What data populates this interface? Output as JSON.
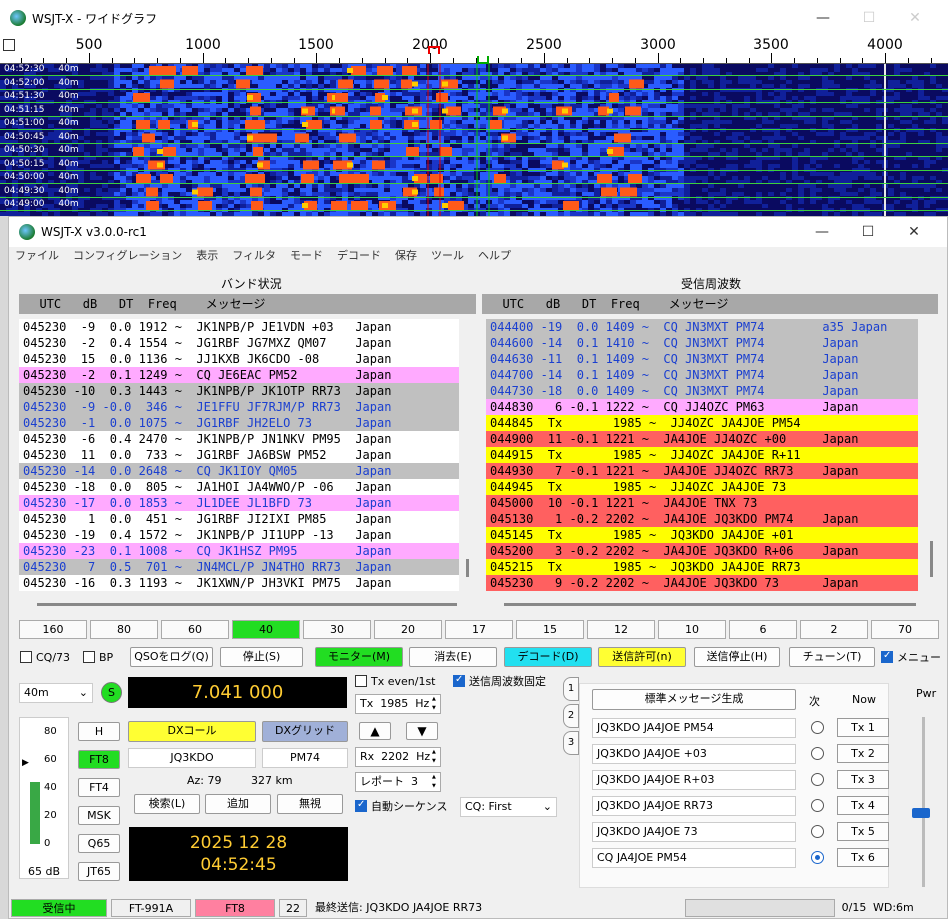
{
  "waterfall": {
    "title": "WSJT-X - ワイドグラフ",
    "ticks": [
      "500",
      "1000",
      "1500",
      "2000",
      "2500",
      "3000",
      "3500",
      "4000"
    ],
    "rows": [
      {
        "time": "04:52:30",
        "band": "40m"
      },
      {
        "time": "04:52:00",
        "band": "40m"
      },
      {
        "time": "04:51:30",
        "band": "40m"
      },
      {
        "time": "04:51:15",
        "band": "40m"
      },
      {
        "time": "04:51:00",
        "band": "40m"
      },
      {
        "time": "04:50:45",
        "band": "40m"
      },
      {
        "time": "04:50:30",
        "band": "40m"
      },
      {
        "time": "04:50:15",
        "band": "40m"
      },
      {
        "time": "04:50:00",
        "band": "40m"
      },
      {
        "time": "04:49:30",
        "band": "40m"
      },
      {
        "time": "04:49:00",
        "band": "40m"
      }
    ]
  },
  "main": {
    "title": "WSJT-X   v3.0.0-rc1",
    "menu": [
      "ファイル",
      "コンフィグレーション",
      "表示",
      "フィルタ",
      "モード",
      "デコード",
      "保存",
      "ツール",
      "ヘルプ"
    ],
    "band_activity_label": "バンド状況",
    "rx_freq_label": "受信周波数",
    "header": "  UTC   dB   DT  Freq    メッセージ",
    "band_activity": [
      {
        "text": "045230  -9  0.0 1912 ~  JK1NPB/P JE1VDN +03   Japan",
        "bg": "",
        "fg": ""
      },
      {
        "text": "045230  -2  0.4 1554 ~  JG1RBF JG7MXZ QM07    Japan",
        "bg": "",
        "fg": ""
      },
      {
        "text": "045230  15  0.0 1136 ~  JJ1KXB JK6CDO -08     Japan",
        "bg": "",
        "fg": ""
      },
      {
        "text": "045230  -2  0.1 1249 ~  CQ JE6EAC PM52        Japan",
        "bg": "c-pink",
        "fg": ""
      },
      {
        "text": "045230 -10  0.3 1443 ~  JK1NPB/P JK1OTP RR73  Japan",
        "bg": "c-gray",
        "fg": ""
      },
      {
        "text": "045230  -9 -0.0  346 ~  JE1FFU JF7RJM/P RR73  Japan",
        "bg": "c-gray",
        "fg": "t-blue"
      },
      {
        "text": "045230  -1  0.0 1075 ~  JG1RBF JH2ELO 73      Japan",
        "bg": "c-gray",
        "fg": "t-blue"
      },
      {
        "text": "045230  -6  0.4 2470 ~  JK1NPB/P JN1NKV PM95  Japan",
        "bg": "",
        "fg": ""
      },
      {
        "text": "045230  11  0.0  733 ~  JG1RBF JA6BSW PM52    Japan",
        "bg": "",
        "fg": ""
      },
      {
        "text": "045230 -14  0.0 2648 ~  CQ JK1IOY QM05        Japan",
        "bg": "c-gray",
        "fg": "t-blue"
      },
      {
        "text": "045230 -18  0.0  805 ~  JA1HOI JA4WWO/P -06   Japan",
        "bg": "",
        "fg": ""
      },
      {
        "text": "045230 -17  0.0 1853 ~  JL1DEE JL1BFD 73      Japan",
        "bg": "c-pink",
        "fg": "t-blue"
      },
      {
        "text": "045230   1  0.0  451 ~  JG1RBF JI2IXI PM85    Japan",
        "bg": "",
        "fg": ""
      },
      {
        "text": "045230 -19  0.4 1572 ~  JK1NPB/P JI1UPP -13   Japan",
        "bg": "",
        "fg": ""
      },
      {
        "text": "045230 -23  0.1 1008 ~  CQ JK1HSZ PM95        Japan",
        "bg": "c-pink",
        "fg": "t-blue"
      },
      {
        "text": "045230   7  0.5  701 ~  JN4MCL/P JN4THO RR73  Japan",
        "bg": "c-gray",
        "fg": "t-blue"
      },
      {
        "text": "045230 -16  0.3 1193 ~  JK1XWN/P JH3VKI PM75  Japan",
        "bg": "",
        "fg": ""
      }
    ],
    "rx_frequency": [
      {
        "text": "044400 -19  0.0 1409 ~  CQ JN3MXT PM74        a35 Japan",
        "bg": "c-gray",
        "fg": "t-blue"
      },
      {
        "text": "044600 -14  0.1 1410 ~  CQ JN3MXT PM74        Japan",
        "bg": "c-gray",
        "fg": "t-blue"
      },
      {
        "text": "044630 -11  0.1 1409 ~  CQ JN3MXT PM74        Japan",
        "bg": "c-gray",
        "fg": "t-blue"
      },
      {
        "text": "044700 -14  0.1 1409 ~  CQ JN3MXT PM74        Japan",
        "bg": "c-gray",
        "fg": "t-blue"
      },
      {
        "text": "044730 -18  0.0 1409 ~  CQ JN3MXT PM74        Japan",
        "bg": "c-gray",
        "fg": "t-blue"
      },
      {
        "text": "044830   6 -0.1 1222 ~  CQ JJ4OZC PM63        Japan",
        "bg": "c-pink",
        "fg": ""
      },
      {
        "text": "044845  Tx       1985 ~  JJ4OZC JA4JOE PM54",
        "bg": "c-yellow",
        "fg": ""
      },
      {
        "text": "044900  11 -0.1 1221 ~  JA4JOE JJ4OZC +00     Japan",
        "bg": "c-red",
        "fg": ""
      },
      {
        "text": "044915  Tx       1985 ~  JJ4OZC JA4JOE R+11",
        "bg": "c-yellow",
        "fg": ""
      },
      {
        "text": "044930   7 -0.1 1221 ~  JA4JOE JJ4OZC RR73    Japan",
        "bg": "c-red",
        "fg": ""
      },
      {
        "text": "044945  Tx       1985 ~  JJ4OZC JA4JOE 73",
        "bg": "c-yellow",
        "fg": ""
      },
      {
        "text": "045000  10 -0.1 1221 ~  JA4JOE TNX 73",
        "bg": "c-red",
        "fg": ""
      },
      {
        "text": "045130   1 -0.2 2202 ~  JA4JOE JQ3KDO PM74    Japan",
        "bg": "c-red",
        "fg": ""
      },
      {
        "text": "045145  Tx       1985 ~  JQ3KDO JA4JOE +01",
        "bg": "c-yellow",
        "fg": ""
      },
      {
        "text": "045200   3 -0.2 2202 ~  JA4JOE JQ3KDO R+06    Japan",
        "bg": "c-red",
        "fg": ""
      },
      {
        "text": "045215  Tx       1985 ~  JQ3KDO JA4JOE RR73",
        "bg": "c-yellow",
        "fg": ""
      },
      {
        "text": "045230   9 -0.2 2202 ~  JA4JOE JQ3KDO 73      Japan",
        "bg": "c-red",
        "fg": ""
      }
    ],
    "bands": [
      "160",
      "80",
      "60",
      "40",
      "30",
      "20",
      "17",
      "15",
      "12",
      "10",
      "6",
      "2",
      "70"
    ],
    "selected_band": "40",
    "buttons": {
      "cq73": "CQ/73",
      "bp": "BP",
      "log": "QSOをログ(Q)",
      "stop": "停止(S)",
      "monitor": "モニター(M)",
      "erase": "消去(E)",
      "decode": "デコード(D)",
      "enable_tx": "送信許可(n)",
      "halt_tx": "送信停止(H)",
      "tune": "チューン(T)",
      "menu": "メニュー"
    },
    "band_select": "40m",
    "s_label": "S",
    "dial_freq": "7.041 000",
    "tx_even": "Tx even/1st",
    "hold_tx_freq": "送信周波数固定",
    "tx_freq_label": "Tx",
    "tx_freq": "1985",
    "tx_unit": "Hz",
    "rx_freq_label2": "Rx",
    "rx_freq": "2202",
    "rx_unit": "Hz",
    "report_label": "レポート",
    "report": "3",
    "auto_seq": "自動シーケンス",
    "cq_select": "CQ: First",
    "left_btns": [
      "H",
      "FT8",
      "FT4",
      "MSK",
      "Q65",
      "JT65"
    ],
    "dx_call_btn": "DXコール",
    "dx_grid_btn": "DXグリッド",
    "dx_call": "JQ3KDO",
    "dx_grid": "PM74",
    "az": "Az: 79",
    "dist": "327 km",
    "lookup": "検索(L)",
    "add": "追加",
    "ignore": "無視",
    "date": "2025 12 28",
    "time": "04:52:45",
    "meter_ticks": [
      "80",
      "60",
      "40",
      "20",
      "0"
    ],
    "meter_db": "65 dB",
    "meter_level": 0.55,
    "tabs": [
      "1",
      "2",
      "3"
    ],
    "gen_msgs": "標準メッセージ生成",
    "next_label": "次",
    "now_label": "Now",
    "pwr_label": "Pwr",
    "tx_msgs": [
      {
        "msg": "JQ3KDO JA4JOE PM54",
        "btn": "Tx 1",
        "on": false
      },
      {
        "msg": "JQ3KDO JA4JOE +03",
        "btn": "Tx 2",
        "on": false
      },
      {
        "msg": "JQ3KDO JA4JOE R+03",
        "btn": "Tx 3",
        "on": false
      },
      {
        "msg": "JQ3KDO JA4JOE RR73",
        "btn": "Tx 4",
        "on": false
      },
      {
        "msg": "JQ3KDO JA4JOE 73",
        "btn": "Tx 5",
        "on": false
      },
      {
        "msg": "CQ JA4JOE PM54",
        "btn": "Tx 6",
        "on": true
      }
    ],
    "status": {
      "rx": "受信中",
      "rig": "FT-991A",
      "mode": "FT8",
      "count": "22",
      "last_tx": "最終送信: JQ3KDO JA4JOE RR73",
      "progress": "0/15",
      "wd": "WD:6m"
    },
    "colors": {
      "green": "#22dd22",
      "cyan": "#22e0f0",
      "yellow": "#ffff33",
      "pink": "#ffaaff",
      "red": "#ff6060"
    }
  }
}
